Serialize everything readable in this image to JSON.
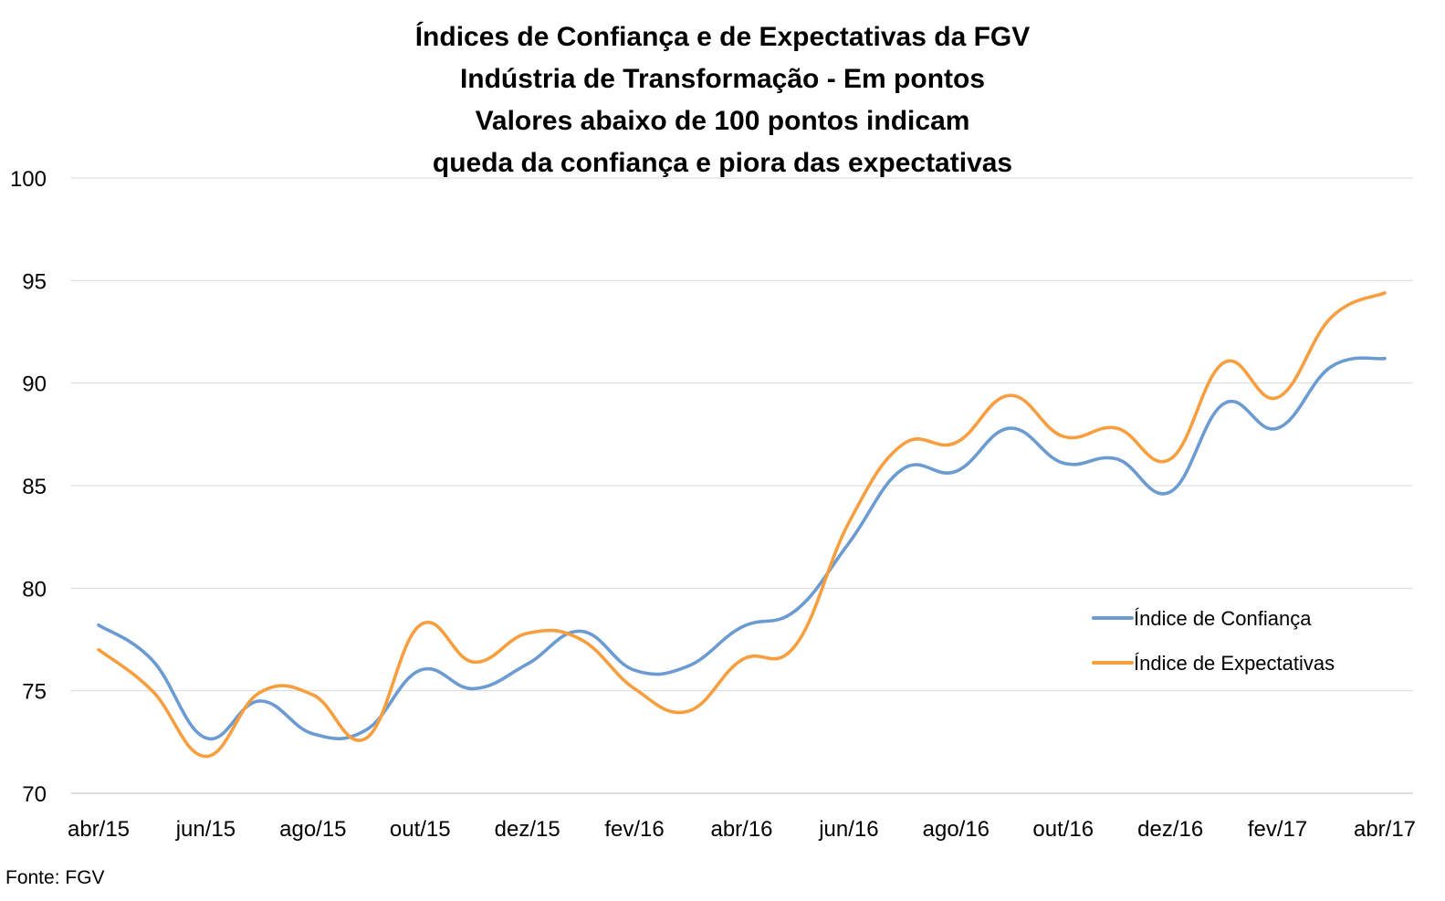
{
  "chart_data": {
    "type": "line",
    "title_lines": [
      "Índices de Confiança e de Expectativas da FGV",
      "Indústria de Transformação - Em pontos",
      "Valores abaixo de 100 pontos indicam",
      "queda da confiança e piora das expectativas"
    ],
    "x_tick_labels": [
      "abr/15",
      "jun/15",
      "ago/15",
      "out/15",
      "dez/15",
      "fev/16",
      "abr/16",
      "jun/16",
      "ago/16",
      "out/16",
      "dez/16",
      "fev/17",
      "abr/17"
    ],
    "x": [
      "abr/15",
      "mai/15",
      "jun/15",
      "jul/15",
      "ago/15",
      "set/15",
      "out/15",
      "nov/15",
      "dez/15",
      "jan/16",
      "fev/16",
      "mar/16",
      "abr/16",
      "mai/16",
      "jun/16",
      "jul/16",
      "ago/16",
      "set/16",
      "out/16",
      "nov/16",
      "dez/16",
      "jan/17",
      "fev/17",
      "mar/17",
      "abr/17"
    ],
    "ylim": [
      70,
      100
    ],
    "y_ticks": [
      "70",
      "75",
      "80",
      "85",
      "90",
      "95",
      "100"
    ],
    "grid": true,
    "legend_position": "right",
    "series": [
      {
        "name": "Índice de Confiança",
        "color": "#6b9bd1",
        "values": [
          78.2,
          76.5,
          72.7,
          74.5,
          72.9,
          73.1,
          76.0,
          75.1,
          76.3,
          77.9,
          76.0,
          76.2,
          78.1,
          78.9,
          82.2,
          85.8,
          85.7,
          87.8,
          86.1,
          86.3,
          84.7,
          89.0,
          87.8,
          90.8,
          91.2
        ]
      },
      {
        "name": "Índice de Expectativas",
        "color": "#f79e3e",
        "values": [
          77.0,
          75.0,
          71.8,
          74.9,
          74.8,
          72.7,
          78.2,
          76.4,
          77.8,
          77.5,
          75.1,
          74.0,
          76.5,
          77.2,
          83.2,
          87.0,
          87.1,
          89.4,
          87.4,
          87.8,
          86.3,
          91.0,
          89.3,
          93.2,
          94.4
        ]
      }
    ]
  },
  "source": "Fonte: FGV"
}
